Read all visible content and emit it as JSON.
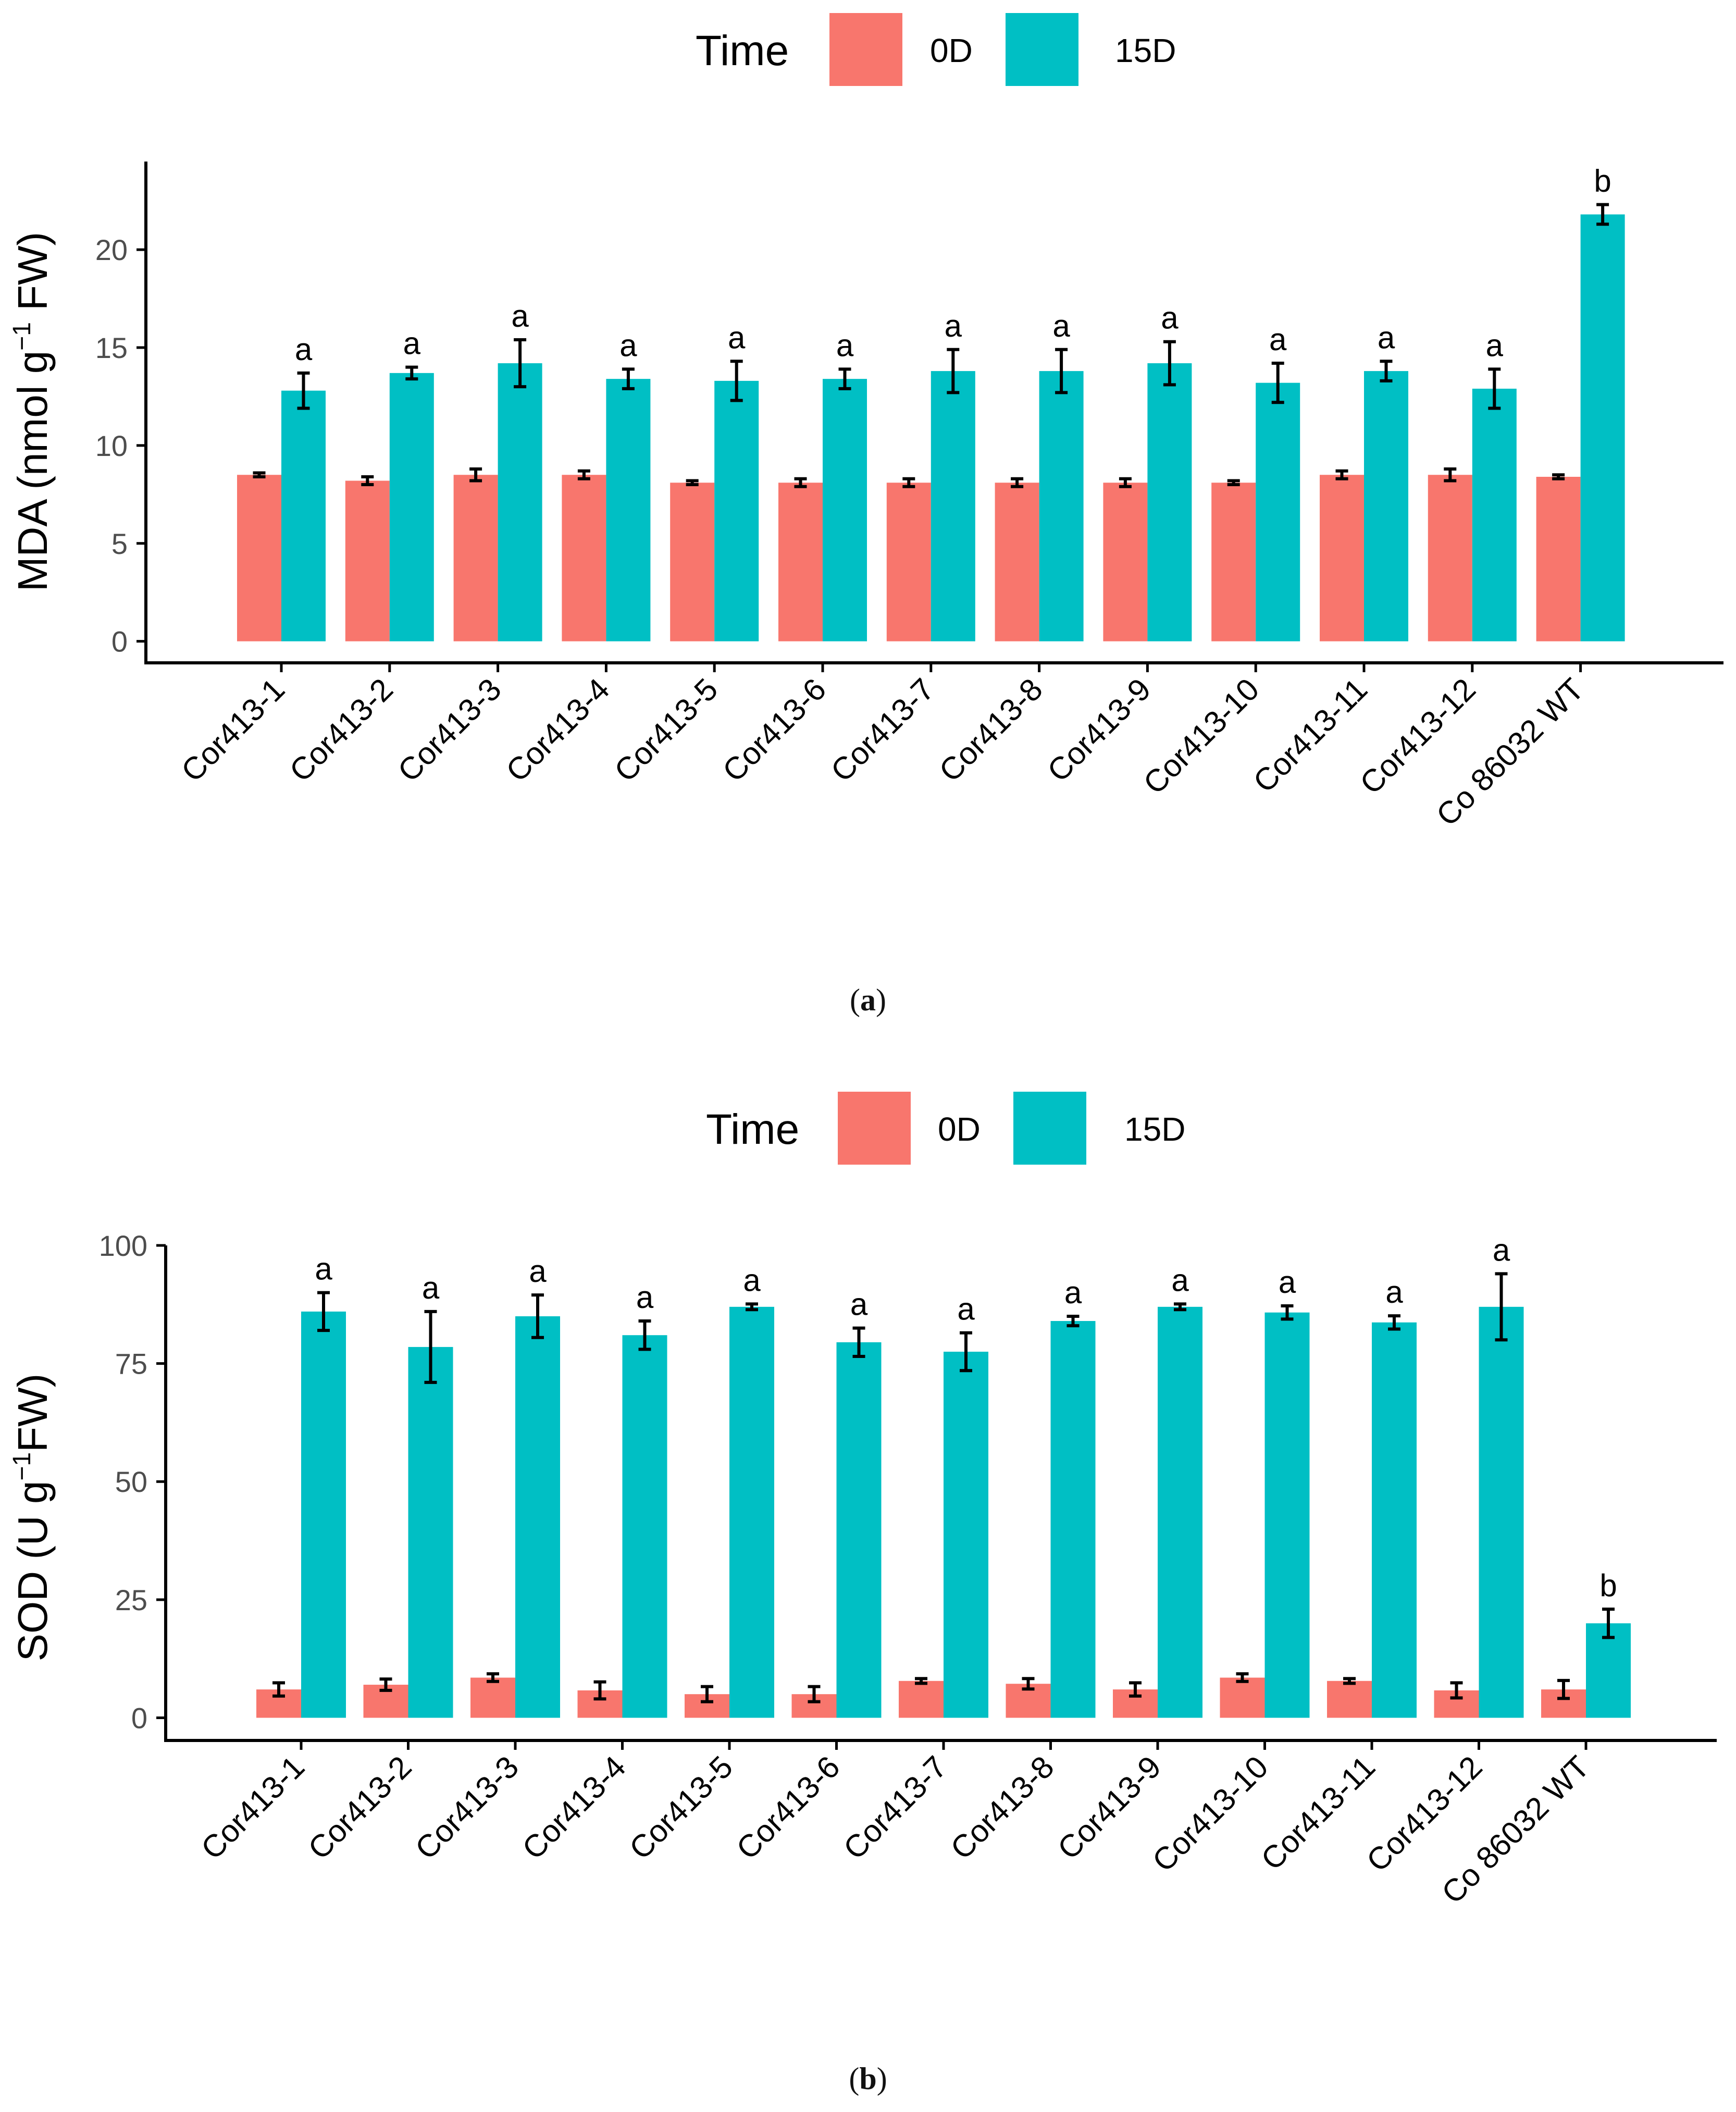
{
  "colors": {
    "d0": "#F8766D",
    "d15": "#00BFC4",
    "axis": "#000000",
    "text": "#000000",
    "tick_text": "#4D4D4D"
  },
  "chart_data": [
    {
      "type": "bar",
      "panel": "a",
      "legend_title": "Time",
      "legend_placement": "top",
      "ylabel_main": "MDA (nmol g",
      "ylabel_sup": "−1",
      "ylabel_tail": " FW)",
      "xlabel": "",
      "ylim": [
        -1.1,
        24.5
      ],
      "y_ticks": [
        0,
        5,
        10,
        15,
        20
      ],
      "categories": [
        "Cor413-1",
        "Cor413-2",
        "Cor413-3",
        "Cor413-4",
        "Cor413-5",
        "Cor413-6",
        "Cor413-7",
        "Cor413-8",
        "Cor413-9",
        "Cor413-10",
        "Cor413-11",
        "Cor413-12",
        "Co 86032 WT"
      ],
      "series": [
        {
          "name": "0D",
          "color": "#F8766D",
          "values": [
            8.5,
            8.2,
            8.5,
            8.5,
            8.1,
            8.1,
            8.1,
            8.1,
            8.1,
            8.1,
            8.5,
            8.5,
            8.4
          ],
          "errors": [
            0.1,
            0.2,
            0.3,
            0.2,
            0.1,
            0.2,
            0.2,
            0.2,
            0.2,
            0.1,
            0.2,
            0.3,
            0.1
          ]
        },
        {
          "name": "15D",
          "color": "#00BFC4",
          "values": [
            12.8,
            13.7,
            14.2,
            13.4,
            13.3,
            13.4,
            13.8,
            13.8,
            14.2,
            13.2,
            13.8,
            12.9,
            21.8
          ],
          "errors": [
            0.9,
            0.3,
            1.2,
            0.5,
            1.0,
            0.5,
            1.1,
            1.1,
            1.1,
            1.0,
            0.5,
            1.0,
            0.5
          ]
        }
      ],
      "significance_letters": [
        "a",
        "a",
        "a",
        "a",
        "a",
        "a",
        "a",
        "a",
        "a",
        "a",
        "a",
        "a",
        "b"
      ],
      "caption": "a"
    },
    {
      "type": "bar",
      "panel": "b",
      "legend_title": "Time",
      "legend_placement": "top",
      "ylabel_main": "SOD (U g",
      "ylabel_sup": "−1",
      "ylabel_tail": "FW)",
      "xlabel": "",
      "ylim": [
        -4.8,
        100
      ],
      "y_ticks": [
        0,
        25,
        50,
        75,
        100
      ],
      "categories": [
        "Cor413-1",
        "Cor413-2",
        "Cor413-3",
        "Cor413-4",
        "Cor413-5",
        "Cor413-6",
        "Cor413-7",
        "Cor413-8",
        "Cor413-9",
        "Cor413-10",
        "Cor413-11",
        "Cor413-12",
        "Co 86032 WT"
      ],
      "series": [
        {
          "name": "0D",
          "color": "#F8766D",
          "values": [
            6.0,
            7.0,
            8.5,
            5.8,
            5.0,
            5.0,
            7.8,
            7.2,
            6.0,
            8.5,
            7.8,
            5.8,
            6.0
          ],
          "errors": [
            1.4,
            1.2,
            0.8,
            1.8,
            1.6,
            1.6,
            0.5,
            1.1,
            1.4,
            0.8,
            0.5,
            1.6,
            1.9
          ]
        },
        {
          "name": "15D",
          "color": "#00BFC4",
          "values": [
            86.0,
            78.5,
            85.0,
            81.0,
            87.0,
            79.5,
            77.5,
            84.0,
            87.0,
            85.8,
            83.7,
            87.0,
            20.0
          ],
          "errors": [
            4.0,
            7.5,
            4.5,
            3.0,
            0.6,
            3.0,
            4.0,
            1.0,
            0.6,
            1.4,
            1.4,
            7.0,
            3.0
          ]
        }
      ],
      "significance_letters": [
        "a",
        "a",
        "a",
        "a",
        "a",
        "a",
        "a",
        "a",
        "a",
        "a",
        "a",
        "a",
        "b"
      ],
      "caption": "b"
    }
  ]
}
